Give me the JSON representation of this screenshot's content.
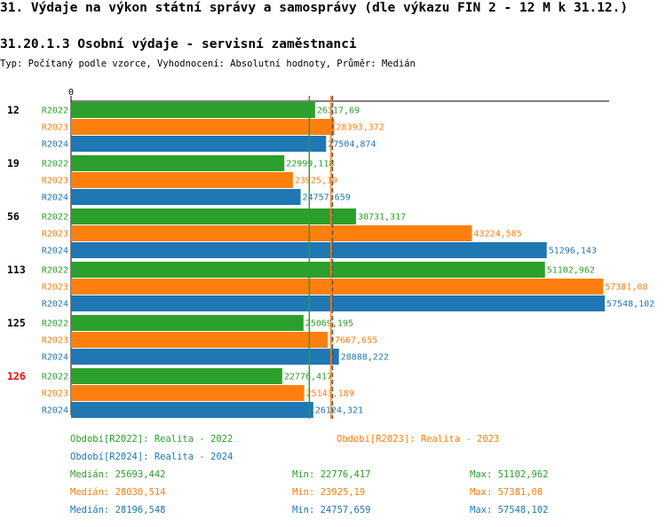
{
  "header": {
    "title": "31. Výdaje na výkon státní správy a samosprávy (dle výkazu FIN 2 - 12 M k 31.12.)",
    "subtitle": "31.20.1.3 Osobní výdaje - servisní zaměstnanci",
    "type_line": "Typ: Počítaný podle vzorce, Vyhodnocení: Absolutní hodnoty, Průměr: Medián"
  },
  "colors": {
    "R2022": "#2ca02c",
    "R2023": "#ff7f0e",
    "R2024": "#1f77b4",
    "highlight": "#ff0000",
    "text": "#000000"
  },
  "chart_data": {
    "type": "bar",
    "orientation": "horizontal",
    "axis_zero_label": "0",
    "xlim": [
      0,
      57548.102
    ],
    "categories": [
      {
        "label": "12",
        "highlight": false,
        "values": [
          {
            "series": "R2022",
            "value": 26317.69,
            "text": "26317,69"
          },
          {
            "series": "R2023",
            "value": 28393.372,
            "text": "28393,372"
          },
          {
            "series": "R2024",
            "value": 27504.874,
            "text": "27504,874"
          }
        ]
      },
      {
        "label": "19",
        "highlight": false,
        "values": [
          {
            "series": "R2022",
            "value": 22999.118,
            "text": "22999,118"
          },
          {
            "series": "R2023",
            "value": 23925.19,
            "text": "23925,19"
          },
          {
            "series": "R2024",
            "value": 24757.659,
            "text": "24757,659"
          }
        ]
      },
      {
        "label": "56",
        "highlight": false,
        "values": [
          {
            "series": "R2022",
            "value": 30731.317,
            "text": "30731,317"
          },
          {
            "series": "R2023",
            "value": 43224.585,
            "text": "43224,585"
          },
          {
            "series": "R2024",
            "value": 51296.143,
            "text": "51296,143"
          }
        ]
      },
      {
        "label": "113",
        "highlight": false,
        "values": [
          {
            "series": "R2022",
            "value": 51102.962,
            "text": "51102,962"
          },
          {
            "series": "R2023",
            "value": 57381.08,
            "text": "57381,08"
          },
          {
            "series": "R2024",
            "value": 57548.102,
            "text": "57548,102"
          }
        ]
      },
      {
        "label": "125",
        "highlight": false,
        "values": [
          {
            "series": "R2022",
            "value": 25069.195,
            "text": "25069,195"
          },
          {
            "series": "R2023",
            "value": 27667.655,
            "text": "27667,655"
          },
          {
            "series": "R2024",
            "value": 28888.222,
            "text": "28888,222"
          }
        ]
      },
      {
        "label": "126",
        "highlight": true,
        "values": [
          {
            "series": "R2022",
            "value": 22776.417,
            "text": "22776,417"
          },
          {
            "series": "R2023",
            "value": 25143.189,
            "text": "25143,189"
          },
          {
            "series": "R2024",
            "value": 26124.321,
            "text": "26124,321"
          }
        ]
      }
    ],
    "median_lines": [
      {
        "series": "R2022",
        "value": 25693.442,
        "style": "solid"
      },
      {
        "series": "R2023",
        "value": 28030.514,
        "style": "solid"
      },
      {
        "series": "R2024",
        "value": 28196.548,
        "style": "dashed"
      }
    ]
  },
  "legend": {
    "periods": [
      {
        "series": "R2022",
        "text": "Období[R2022]: Realita - 2022"
      },
      {
        "series": "R2023",
        "text": "Období[R2023]: Realita - 2023"
      },
      {
        "series": "R2024",
        "text": "Období[R2024]: Realita - 2024"
      }
    ],
    "stats": [
      {
        "series": "R2022",
        "median": "Medián: 25693,442",
        "min": "Min: 22776,417",
        "max": "Max: 51102,962"
      },
      {
        "series": "R2023",
        "median": "Medián: 28030,514",
        "min": "Min: 23925,19",
        "max": "Max: 57381,08"
      },
      {
        "series": "R2024",
        "median": "Medián: 28196,548",
        "min": "Min: 24757,659",
        "max": "Max: 57548,102"
      }
    ]
  }
}
